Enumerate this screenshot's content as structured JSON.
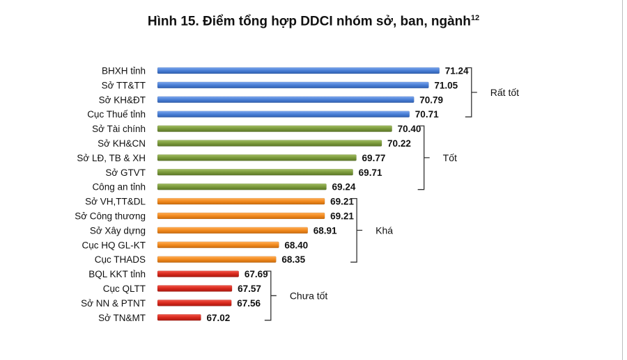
{
  "title": "Hình 15. Điểm tổng hợp DDCI nhóm sở, ban, ngành",
  "title_sup": "12",
  "chart_data": {
    "type": "bar",
    "orientation": "horizontal",
    "title": "Hình 15. Điểm tổng hợp DDCI nhóm sở, ban, ngành",
    "categories": [
      "BHXH tỉnh",
      "Sở TT&TT",
      "Sở KH&ĐT",
      "Cục Thuế tỉnh",
      "Sở Tài chính",
      "Sở KH&CN",
      "Sở LĐ, TB & XH",
      "Sở GTVT",
      "Công an tỉnh",
      "Sở VH,TT&DL",
      "Sở Công thương",
      "Sở Xây dựng",
      "Cục HQ GL-KT",
      "Cục THADS",
      "BQL KKT tỉnh",
      "Cục QLTT",
      "Sở NN & PTNT",
      "Sở TN&MT"
    ],
    "values": [
      71.24,
      71.05,
      70.79,
      70.71,
      70.4,
      70.22,
      69.77,
      69.71,
      69.24,
      69.21,
      69.21,
      68.91,
      68.4,
      68.35,
      67.69,
      67.57,
      67.56,
      67.02
    ],
    "value_labels": [
      "71.24",
      "71.05",
      "70.79",
      "70.71",
      "70.40",
      "70.22",
      "69.77",
      "69.71",
      "69.24",
      "69.21",
      "69.21",
      "68.91",
      "68.40",
      "68.35",
      "67.69",
      "67.57",
      "67.56",
      "67.02"
    ],
    "groups": [
      {
        "label": "Rất tốt",
        "start": 0,
        "end": 3,
        "color": "#4a7fd6"
      },
      {
        "label": "Tốt",
        "start": 4,
        "end": 8,
        "color": "#7b9a3c"
      },
      {
        "label": "Khá",
        "start": 9,
        "end": 13,
        "color": "#f28a1e"
      },
      {
        "label": "Chưa tốt",
        "start": 14,
        "end": 17,
        "color": "#d8281c"
      }
    ],
    "xlim": [
      66.25,
      71.6
    ],
    "grid": false,
    "legend": "none"
  }
}
